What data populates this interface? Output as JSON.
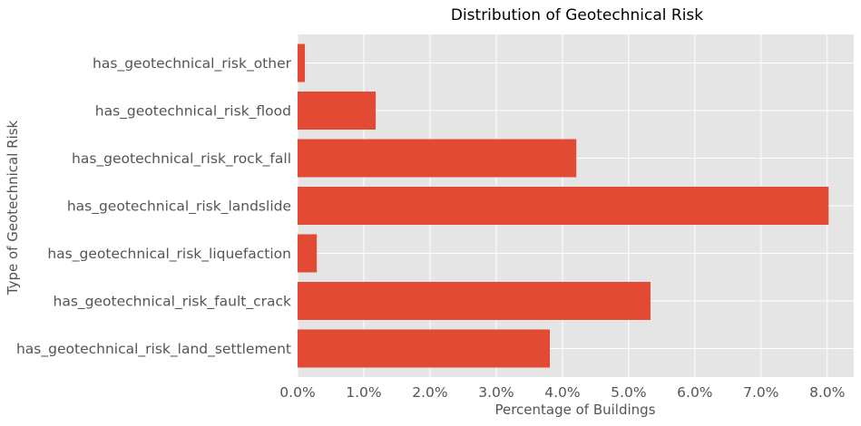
{
  "chart_data": {
    "type": "bar",
    "orientation": "horizontal",
    "title": "Distribution of Geotechnical Risk",
    "xlabel": "Percentage of Buildings",
    "ylabel": "Type of Geotechnical Risk",
    "categories": [
      "has_geotechnical_risk_land_settlement",
      "has_geotechnical_risk_fault_crack",
      "has_geotechnical_risk_liquefaction",
      "has_geotechnical_risk_landslide",
      "has_geotechnical_risk_rock_fall",
      "has_geotechnical_risk_flood",
      "has_geotechnical_risk_other"
    ],
    "values": [
      3.81,
      5.33,
      0.29,
      8.02,
      4.21,
      1.18,
      0.11
    ],
    "xlim": [
      0,
      8.4
    ],
    "xticks": [
      0,
      1,
      2,
      3,
      4,
      5,
      6,
      7,
      8
    ],
    "xtick_labels": [
      "0.0%",
      "1.0%",
      "2.0%",
      "3.0%",
      "4.0%",
      "5.0%",
      "6.0%",
      "7.0%",
      "8.0%"
    ],
    "grid": true,
    "colors": {
      "bar": "#E24A33",
      "plot_background": "#E5E5E5",
      "grid": "#FFFFFF"
    }
  }
}
